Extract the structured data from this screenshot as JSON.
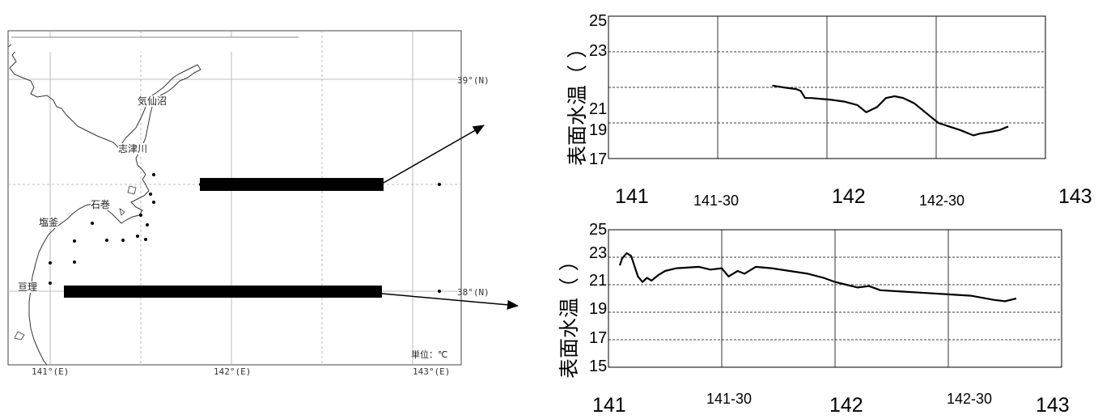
{
  "map": {
    "lat_labels": [
      "39°(N)",
      "38°(N)"
    ],
    "lon_labels": [
      "141°(E)",
      "142°(E)",
      "143°(E)"
    ],
    "places": [
      "気仙沼",
      "志津川",
      "石巻",
      "塩釜",
      "亘理"
    ],
    "unit": "単位：℃"
  },
  "chart_data": [
    {
      "type": "line",
      "xlabel": "",
      "ylabel": "表面水温（ ）",
      "ylim": [
        17,
        25
      ],
      "yticks": [
        25,
        23,
        21,
        19,
        17
      ],
      "xlim": [
        141.0,
        143.0
      ],
      "xtick_labels": [
        "141",
        "141-30",
        "142",
        "142-30",
        "143"
      ],
      "grid": true,
      "series": [
        {
          "x": [
            141.75,
            141.8,
            141.86,
            141.88,
            141.9,
            141.93,
            142.02,
            142.08,
            142.14,
            142.18,
            142.23,
            142.27,
            142.31,
            142.35,
            142.4,
            142.45,
            142.51,
            142.56,
            142.61,
            142.67,
            142.7,
            142.75,
            142.79,
            142.83
          ],
          "values": [
            21.1,
            21.0,
            20.9,
            20.8,
            20.4,
            20.4,
            20.3,
            20.2,
            20.0,
            19.6,
            19.9,
            20.4,
            20.5,
            20.4,
            20.1,
            19.6,
            19.0,
            18.8,
            18.6,
            18.3,
            18.4,
            18.5,
            18.6,
            18.8
          ]
        }
      ]
    },
    {
      "type": "line",
      "xlabel": "",
      "ylabel": "表面水温（ ）",
      "ylim": [
        15,
        25
      ],
      "yticks": [
        25,
        23,
        21,
        19,
        17,
        15
      ],
      "xlim": [
        141.0,
        143.0
      ],
      "xtick_labels": [
        "141",
        "141-30",
        "142",
        "142-30",
        "143"
      ],
      "grid": true,
      "series": [
        {
          "x": [
            141.05,
            141.06,
            141.08,
            141.1,
            141.12,
            141.13,
            141.15,
            141.17,
            141.19,
            141.22,
            141.25,
            141.3,
            141.4,
            141.45,
            141.5,
            141.53,
            141.57,
            141.6,
            141.65,
            141.72,
            141.8,
            141.88,
            141.95,
            142.0,
            142.05,
            142.1,
            142.15,
            142.2,
            142.3,
            142.4,
            142.5,
            142.6,
            142.7,
            142.75,
            142.8
          ],
          "values": [
            22.4,
            22.9,
            23.3,
            23.1,
            22.1,
            21.6,
            21.2,
            21.5,
            21.3,
            21.7,
            22.0,
            22.2,
            22.3,
            22.1,
            22.2,
            21.6,
            22.0,
            21.8,
            22.3,
            22.2,
            22.0,
            21.8,
            21.5,
            21.2,
            21.0,
            20.8,
            20.9,
            20.6,
            20.5,
            20.4,
            20.3,
            20.2,
            19.9,
            19.8,
            20.0
          ]
        }
      ]
    }
  ]
}
